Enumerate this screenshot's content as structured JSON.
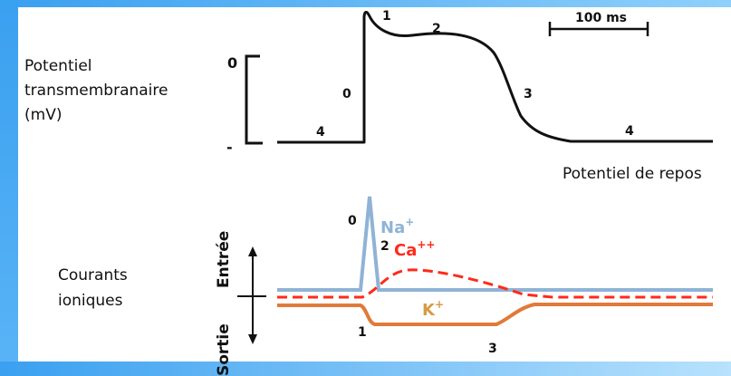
{
  "labels": {
    "potential_line1": "Potentiel",
    "potential_line2": "transmembranaire",
    "potential_line3": "(mV)",
    "zero": "0",
    "minus": "-",
    "resting": "Potentiel de repos",
    "scale": "100 ms",
    "currents_line1": "Courants",
    "currents_line2": "ioniques",
    "entry": "Entrée",
    "exit": "Sortie"
  },
  "phases": {
    "p0_top": "0",
    "p1_top": "1",
    "p2_top": "2",
    "p3_top": "3",
    "p4_left": "4",
    "p4_right": "4",
    "p0_bottom": "0",
    "p1_bottom": "1",
    "p2_bottom": "2",
    "p3_bottom": "3"
  },
  "ions": {
    "na": "Na",
    "na_sup": "+",
    "ca": "Ca",
    "ca_sup": "++",
    "k": "K",
    "k_sup": "+"
  },
  "colors": {
    "na": "#8fb3d6",
    "ca": "#ff2a1a",
    "k": "#e07a3a",
    "k_label": "#d79a45",
    "ap_trace": "#111111",
    "frame": "#3aa0f0"
  }
}
